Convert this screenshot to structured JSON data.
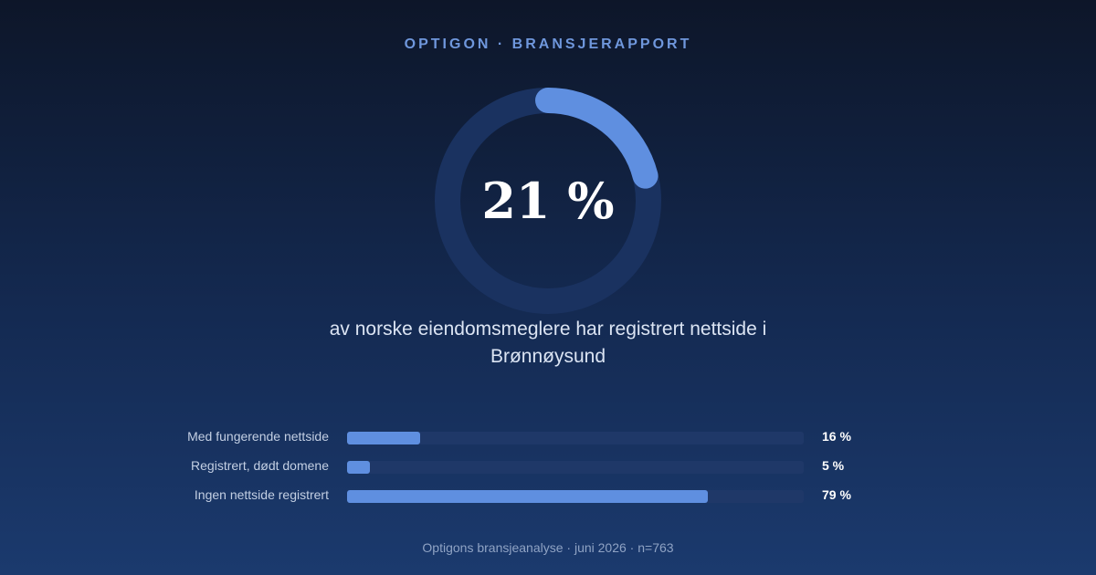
{
  "kicker": "OPTIGON · BRANSJERAPPORT",
  "headline": "av norske eiendomsmeglere har registrert nettside i Brønnøysund",
  "footer": "Optigons bransjeanalyse · juni 2026 · n=763",
  "colors": {
    "accent": "#5f8fe0",
    "track": "#1f3868",
    "kicker": "#6f97dc"
  },
  "chart_data": [
    {
      "type": "pie",
      "label": "21 %",
      "values": [
        21,
        79
      ],
      "highlight_value": 21
    },
    {
      "type": "bar",
      "orientation": "horizontal",
      "categories": [
        "Med fungerende nettside",
        "Registrert, dødt domene",
        "Ingen nettside registrert"
      ],
      "values": [
        16,
        5,
        79
      ],
      "value_labels": [
        "16 %",
        "5 %",
        "79 %"
      ],
      "xlim": [
        0,
        100
      ]
    }
  ]
}
